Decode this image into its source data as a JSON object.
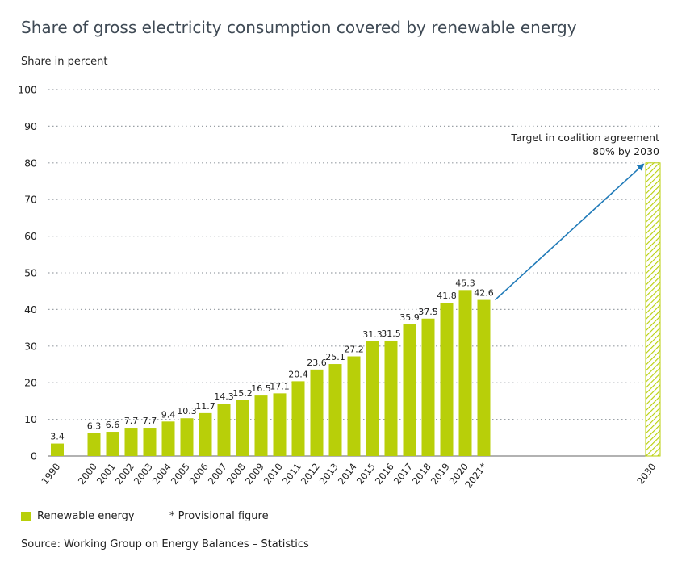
{
  "colors": {
    "bar": "#b8cf09",
    "arrow": "#1f7ab8",
    "grid": "#9aa0a6",
    "title": "#3f4a55"
  },
  "chart_data": {
    "type": "bar",
    "title": "Share of gross electricity consumption covered by renewable energy",
    "ylabel": "Share in percent",
    "xlabel": "",
    "ylim": [
      0,
      100
    ],
    "yticks": [
      0,
      10,
      20,
      30,
      40,
      50,
      60,
      70,
      80,
      90,
      100
    ],
    "grid": "horizontal dotted",
    "categories": [
      "1990",
      "2000",
      "2001",
      "2002",
      "2003",
      "2004",
      "2005",
      "2006",
      "2007",
      "2008",
      "2009",
      "2010",
      "2011",
      "2012",
      "2013",
      "2014",
      "2015",
      "2016",
      "2017",
      "2018",
      "2019",
      "2020",
      "2021*"
    ],
    "series": [
      {
        "name": "Renewable energy",
        "values": [
          3.4,
          6.3,
          6.6,
          7.7,
          7.7,
          9.4,
          10.3,
          11.7,
          14.3,
          15.2,
          16.5,
          17.1,
          20.4,
          23.6,
          25.1,
          27.2,
          31.3,
          31.5,
          35.9,
          37.5,
          41.8,
          45.3,
          42.6
        ],
        "labels": [
          "3.4",
          "6.3",
          "6.6",
          "7.7",
          "7.7",
          "9.4",
          "10.3",
          "11.7",
          "14.3",
          "15.2",
          "16.5",
          "17.1",
          "20.4",
          "23.6",
          "25.1",
          "27.2",
          "31.3",
          "31.5",
          "35.9",
          "37.5",
          "41.8",
          "45.3",
          "42.6"
        ]
      }
    ],
    "target": {
      "category": "2030",
      "value": 80,
      "style": "hatched",
      "annotation_line1": "Target in coalition agreement",
      "annotation_line2": "80% by 2030"
    },
    "legend": {
      "placement": "bottom-left",
      "label": "Renewable energy",
      "note": "* Provisional figure"
    },
    "source": "Source: Working Group on Energy Balances – Statistics"
  }
}
